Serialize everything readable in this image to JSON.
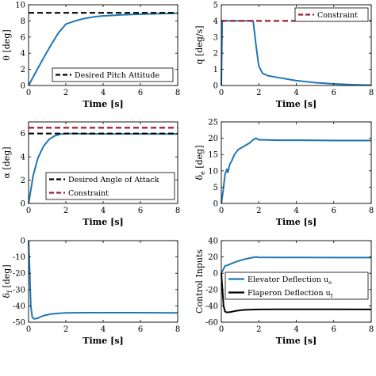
{
  "chart_data": [
    {
      "type": "line",
      "ylabel": "θ [deg]",
      "xlabel": "Time [s]",
      "xlim": [
        0,
        8
      ],
      "ylim": [
        0,
        10
      ],
      "xticks": [
        "0",
        "2",
        "4",
        "6",
        "8"
      ],
      "yticks": [
        "0",
        "2",
        "4",
        "6",
        "8",
        "10"
      ],
      "grid": false,
      "legend_position": "bottom-right",
      "series": [
        {
          "name": "",
          "style": "solid",
          "color": "#1f77b4",
          "x": [
            0,
            0.4,
            0.8,
            1.2,
            1.6,
            2.0,
            2.5,
            3,
            3.5,
            4,
            5,
            6,
            7,
            8
          ],
          "y": [
            0,
            1.7,
            3.4,
            5.0,
            6.5,
            7.6,
            8.0,
            8.3,
            8.5,
            8.62,
            8.75,
            8.83,
            8.9,
            8.95
          ]
        },
        {
          "name": "Desired Pitch Attitude",
          "style": "dashed",
          "color": "#000000",
          "x": [
            0,
            8
          ],
          "y": [
            9,
            9
          ]
        }
      ]
    },
    {
      "type": "line",
      "ylabel": "q [deg/s]",
      "xlabel": "Time [s]",
      "xlim": [
        0,
        8
      ],
      "ylim": [
        0,
        5
      ],
      "xticks": [
        "0",
        "2",
        "4",
        "6",
        "8"
      ],
      "yticks": [
        "0",
        "1",
        "2",
        "3",
        "4",
        "5"
      ],
      "grid": false,
      "legend_position": "top-right",
      "series": [
        {
          "name": "",
          "style": "solid",
          "color": "#1f77b4",
          "x": [
            0,
            0.05,
            0.15,
            1.7,
            1.85,
            2.0,
            2.2,
            2.5,
            3,
            4,
            5,
            6,
            7,
            8
          ],
          "y": [
            0,
            4,
            4,
            4,
            2.5,
            1.2,
            0.75,
            0.6,
            0.5,
            0.3,
            0.18,
            0.1,
            0.05,
            0.02
          ]
        },
        {
          "name": "Constraint",
          "style": "dashed",
          "color": "#a51c30",
          "x": [
            0,
            8
          ],
          "y": [
            4,
            4
          ]
        }
      ]
    },
    {
      "type": "line",
      "ylabel": "α [deg]",
      "xlabel": "Time [s]",
      "xlim": [
        0,
        8
      ],
      "ylim": [
        0,
        7
      ],
      "xticks": [
        "0",
        "2",
        "4",
        "6",
        "8"
      ],
      "yticks": [
        "0",
        "2",
        "4",
        "6"
      ],
      "grid": false,
      "legend_position": "bottom-right",
      "series": [
        {
          "name": "",
          "style": "solid",
          "color": "#1f77b4",
          "x": [
            0,
            0.25,
            0.5,
            0.8,
            1.1,
            1.4,
            1.7,
            2.0,
            2.5,
            3,
            4,
            6,
            8
          ],
          "y": [
            0,
            2.4,
            3.9,
            4.9,
            5.5,
            5.8,
            5.95,
            6.0,
            6.0,
            5.98,
            5.97,
            5.97,
            5.96
          ]
        },
        {
          "name": "Desired Angle of Attack",
          "style": "dashed",
          "color": "#000000",
          "x": [
            0,
            8
          ],
          "y": [
            6,
            6
          ]
        },
        {
          "name": "Constraint",
          "style": "dashed",
          "color": "#a51c30",
          "x": [
            0,
            8
          ],
          "y": [
            6.5,
            6.5
          ]
        }
      ]
    },
    {
      "type": "line",
      "ylabel": "δ_e [deg]",
      "xlabel": "Time [s]",
      "xlim": [
        0,
        8
      ],
      "ylim": [
        0,
        25
      ],
      "xticks": [
        "0",
        "2",
        "4",
        "6",
        "8"
      ],
      "yticks": [
        "0",
        "5",
        "10",
        "15",
        "20",
        "25"
      ],
      "grid": false,
      "legend_position": "none",
      "series": [
        {
          "name": "",
          "style": "solid",
          "color": "#1f77b4",
          "x": [
            0,
            0.1,
            0.2,
            0.3,
            0.35,
            0.45,
            0.55,
            0.7,
            0.9,
            1.2,
            1.5,
            1.7,
            1.85,
            2.0,
            2.2,
            3,
            4,
            6,
            8
          ],
          "y": [
            0,
            4,
            9,
            10.5,
            9.5,
            12,
            13,
            15,
            16.5,
            17.5,
            18.5,
            19.5,
            20,
            19.5,
            19.5,
            19.4,
            19.4,
            19.3,
            19.3
          ]
        }
      ]
    },
    {
      "type": "line",
      "ylabel": "δ_f [deg]",
      "xlabel": "Time [s]",
      "xlim": [
        0,
        8
      ],
      "ylim": [
        -50,
        0
      ],
      "xticks": [
        "0",
        "2",
        "4",
        "6",
        "8"
      ],
      "yticks": [
        "-50",
        "-40",
        "-30",
        "-20",
        "-10",
        "0"
      ],
      "grid": false,
      "legend_position": "none",
      "series": [
        {
          "name": "",
          "style": "solid",
          "color": "#1f77b4",
          "x": [
            0,
            0.05,
            0.12,
            0.2,
            0.3,
            0.5,
            0.8,
            1.2,
            1.6,
            2.0,
            3,
            4,
            6,
            8
          ],
          "y": [
            0,
            -15,
            -40,
            -47,
            -48,
            -47.5,
            -46,
            -45,
            -44.6,
            -44.3,
            -44.2,
            -44.2,
            -44.2,
            -44.3
          ]
        }
      ]
    },
    {
      "type": "line",
      "ylabel": "Control Inputs",
      "xlabel": "Time [s]",
      "xlim": [
        0,
        8
      ],
      "ylim": [
        -60,
        40
      ],
      "xticks": [
        "0",
        "2",
        "4",
        "6",
        "8"
      ],
      "yticks": [
        "-60",
        "-40",
        "-20",
        "0",
        "20",
        "40"
      ],
      "grid": false,
      "legend_position": "center",
      "series": [
        {
          "name": "Elevator Deflection u_e",
          "style": "solid",
          "color": "#1f77b4",
          "x": [
            0,
            0.2,
            0.35,
            0.55,
            0.9,
            1.2,
            1.5,
            1.85,
            2.0,
            3,
            4,
            6,
            8
          ],
          "y": [
            0,
            9,
            10,
            12,
            15,
            17,
            18.5,
            20,
            19.5,
            19.4,
            19.4,
            19.3,
            19.3
          ]
        },
        {
          "name": "Flaperon Deflection u_f",
          "style": "solid",
          "color": "#000000",
          "x": [
            0,
            0.12,
            0.2,
            0.3,
            0.5,
            0.8,
            1.2,
            1.6,
            2.0,
            3,
            4,
            6,
            8
          ],
          "y": [
            0,
            -40,
            -47,
            -48,
            -47.5,
            -46,
            -45,
            -44.6,
            -44.3,
            -44.2,
            -44.2,
            -44.2,
            -44.3
          ]
        }
      ]
    }
  ]
}
